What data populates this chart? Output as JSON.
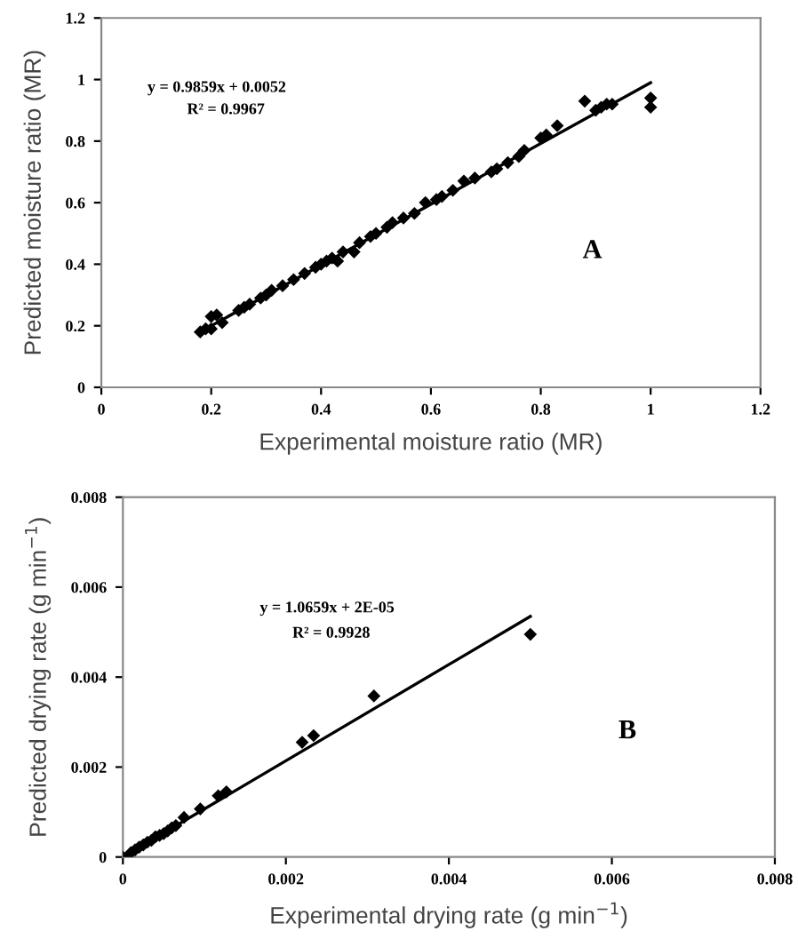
{
  "chart_data": [
    {
      "type": "scatter",
      "xlabel": "Experimental moisture ratio (MR)",
      "ylabel": "Predicted moisture ratio (MR)",
      "xlim": [
        0,
        1.2
      ],
      "ylim": [
        0,
        1.2
      ],
      "xticks": [
        0,
        0.2,
        0.4,
        0.6,
        0.8,
        1,
        1.2
      ],
      "yticks": [
        0,
        0.2,
        0.4,
        0.6,
        0.8,
        1,
        1.2
      ],
      "grid": false,
      "legend": false,
      "annotations": [
        "y = 0.9859x + 0.0052",
        "R² = 0.9967",
        "A"
      ],
      "series": [
        {
          "type": "scatter",
          "marker": "diamond",
          "color": "#000000",
          "x": [
            0.18,
            0.19,
            0.2,
            0.21,
            0.2,
            0.22,
            0.25,
            0.26,
            0.27,
            0.29,
            0.3,
            0.31,
            0.33,
            0.35,
            0.37,
            0.39,
            0.4,
            0.41,
            0.42,
            0.43,
            0.44,
            0.46,
            0.47,
            0.49,
            0.5,
            0.52,
            0.53,
            0.55,
            0.57,
            0.59,
            0.61,
            0.62,
            0.64,
            0.66,
            0.68,
            0.71,
            0.72,
            0.74,
            0.76,
            0.77,
            0.8,
            0.81,
            0.83,
            0.88,
            0.9,
            0.91,
            0.92,
            0.93,
            1.0,
            1.0
          ],
          "values": [
            0.18,
            0.19,
            0.23,
            0.235,
            0.19,
            0.21,
            0.25,
            0.26,
            0.27,
            0.29,
            0.3,
            0.315,
            0.33,
            0.35,
            0.37,
            0.39,
            0.4,
            0.41,
            0.42,
            0.41,
            0.44,
            0.44,
            0.47,
            0.49,
            0.5,
            0.52,
            0.535,
            0.55,
            0.565,
            0.6,
            0.61,
            0.62,
            0.64,
            0.67,
            0.68,
            0.7,
            0.71,
            0.73,
            0.75,
            0.77,
            0.81,
            0.82,
            0.85,
            0.93,
            0.9,
            0.91,
            0.92,
            0.92,
            0.94,
            0.91
          ]
        },
        {
          "type": "line",
          "marker": "none",
          "line_style": "solid",
          "color": "#000000",
          "x": [
            0.18,
            1.0
          ],
          "values": [
            0.18,
            0.99
          ]
        }
      ]
    },
    {
      "type": "scatter",
      "xlabel": "Experimental drying rate (g min$^{−1}$)",
      "ylabel": "Predicted drying rate (g min$^{−1}$)",
      "xlim": [
        0,
        0.008
      ],
      "ylim": [
        0,
        0.008
      ],
      "xticks": [
        0,
        0.002,
        0.004,
        0.006,
        0.008
      ],
      "yticks": [
        0,
        0.002,
        0.004,
        0.006,
        0.008
      ],
      "grid": false,
      "legend": false,
      "annotations": [
        "y = 1.0659x + 2E-05",
        "R² = 0.9928",
        "B"
      ],
      "series": [
        {
          "type": "scatter",
          "marker": "diamond",
          "color": "#000000",
          "x": [
            0,
            0.0001,
            0.00015,
            0.0002,
            0.00025,
            0.0003,
            0.00035,
            0.0004,
            0.00045,
            0.0005,
            0.00055,
            0.0006,
            0.00065,
            0.00075,
            0.00095,
            0.00117,
            0.00127,
            0.0022,
            0.00234,
            0.00308,
            0.005
          ],
          "values": [
            0,
            0.0001,
            0.00016,
            0.00022,
            0.00027,
            0.00033,
            0.00037,
            0.00045,
            0.00048,
            0.00052,
            0.00058,
            0.00065,
            0.0007,
            0.00088,
            0.00107,
            0.00136,
            0.00145,
            0.00255,
            0.0027,
            0.00358,
            0.00495
          ]
        },
        {
          "type": "line",
          "marker": "none",
          "line_style": "solid",
          "color": "#000000",
          "x": [
            0,
            0.005
          ],
          "values": [
            0,
            0.00535
          ]
        }
      ]
    }
  ]
}
